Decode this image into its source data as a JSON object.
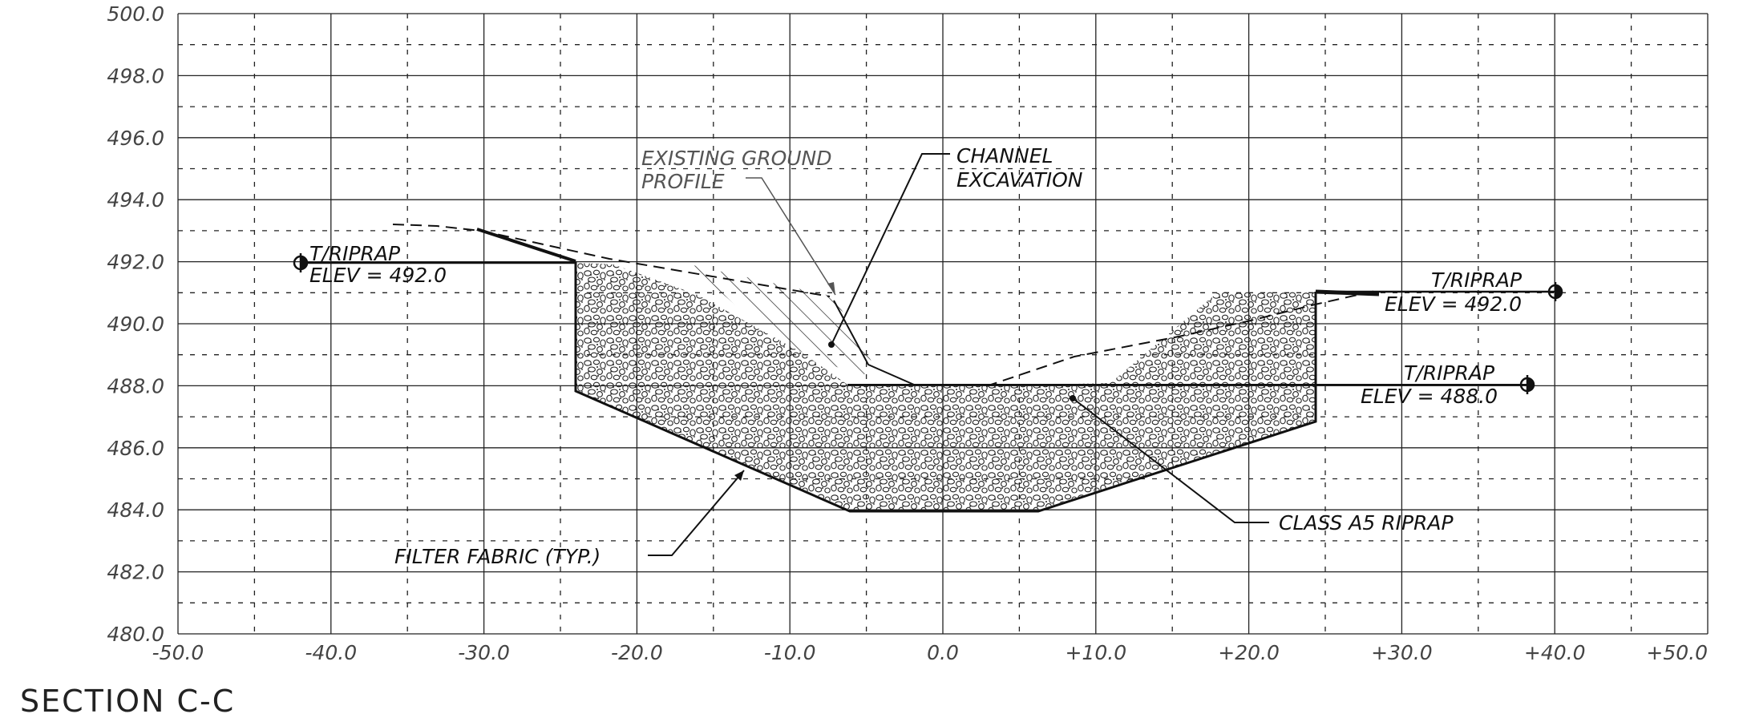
{
  "section_title": "SECTION C-C",
  "y_axis_labels": [
    "500.0",
    "498.0",
    "496.0",
    "494.0",
    "492.0",
    "490.0",
    "488.0",
    "486.0",
    "484.0",
    "482.0",
    "480.0"
  ],
  "x_axis_labels": [
    "-50.0",
    "-40.0",
    "-30.0",
    "-20.0",
    "-10.0",
    "0.0",
    "+10.0",
    "+20.0",
    "+30.0",
    "+40.0",
    "+50.0"
  ],
  "annotations": {
    "existing_ground_line1": "EXISTING GROUND",
    "existing_ground_line2": "PROFILE",
    "channel_excavation_line1": "CHANNEL",
    "channel_excavation_line2": "EXCAVATION",
    "left_riprap_line1": "T/RIPRAP",
    "left_riprap_line2": "ELEV = 492.0",
    "right_upper_riprap_line1": "T/RIPRAP",
    "right_upper_riprap_line2": "ELEV = 492.0",
    "right_lower_riprap_line1": "T/RIPRAP",
    "right_lower_riprap_line2": "ELEV = 488.0",
    "class_riprap": "CLASS A5 RIPRAP",
    "filter_fabric": "FILTER FABRIC (TYP.)"
  },
  "colors": {
    "line": "#111111",
    "grid": "#222222",
    "text": "#444444"
  }
}
